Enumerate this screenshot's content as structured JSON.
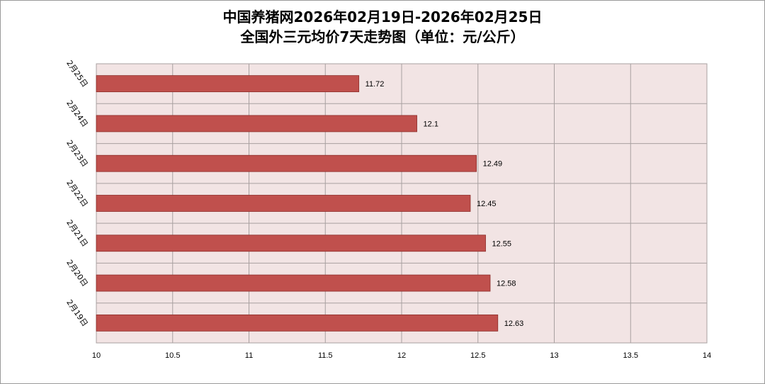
{
  "chart_data": {
    "type": "bar",
    "orientation": "horizontal",
    "title": "中国养猪网2026年02月19日-2026年02月25日",
    "subtitle": "全国外三元均价7天走势图（单位：元/公斤）",
    "categories": [
      "2月25日",
      "2月24日",
      "2月23日",
      "2月22日",
      "2月21日",
      "2月20日",
      "2月19日"
    ],
    "values": [
      11.72,
      12.1,
      12.49,
      12.45,
      12.55,
      12.58,
      12.63
    ],
    "data_labels": [
      "11.72",
      "12.1",
      "12.49",
      "12.45",
      "12.55",
      "12.58",
      "12.63"
    ],
    "xlim": [
      10,
      14
    ],
    "xticks": [
      "10",
      "10.5",
      "11",
      "11.5",
      "12",
      "12.5",
      "13",
      "13.5",
      "14"
    ],
    "grid": true,
    "colors": {
      "bar": "#c0504d",
      "bar_edge": "#8c2d2a",
      "plot_bg": "#f2e4e4",
      "grid": "#a8a0a0"
    }
  }
}
